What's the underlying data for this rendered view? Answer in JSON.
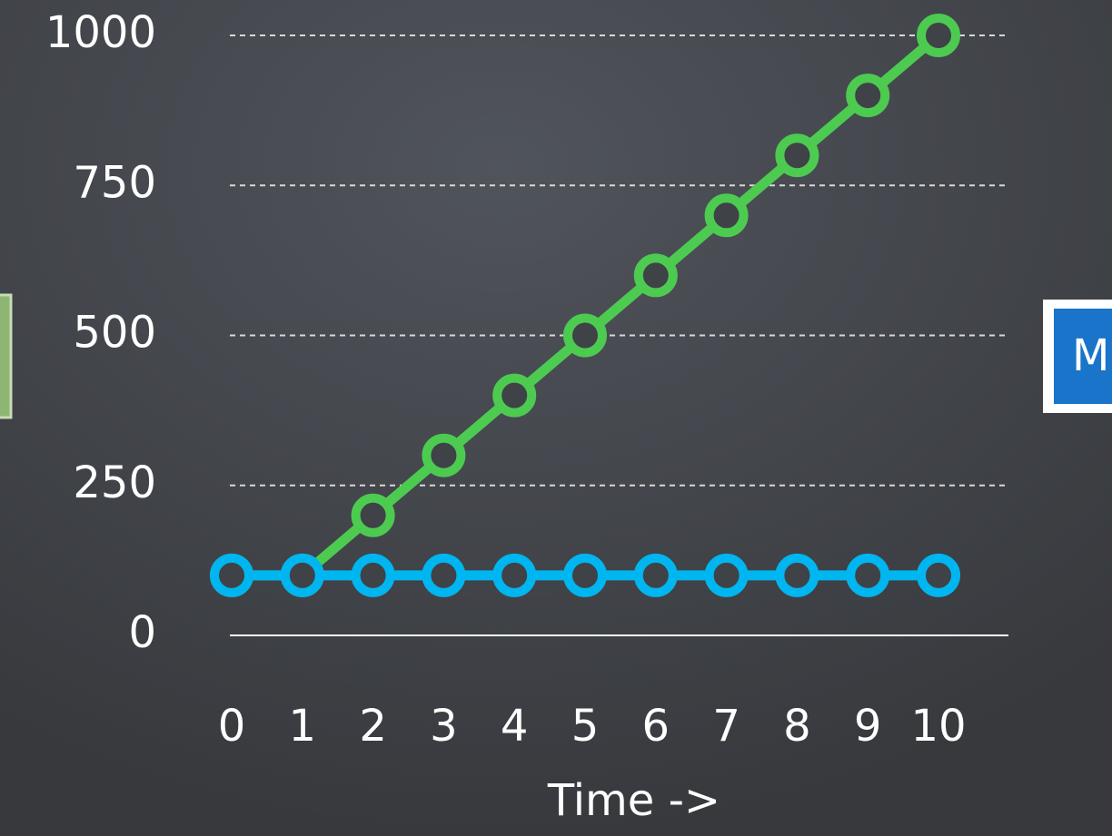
{
  "chart_data": {
    "type": "line",
    "x": [
      0,
      1,
      2,
      3,
      4,
      5,
      6,
      7,
      8,
      9,
      10
    ],
    "xlim": [
      0,
      10
    ],
    "xticks": [
      0,
      1,
      2,
      3,
      4,
      5,
      6,
      7,
      8,
      9,
      10
    ],
    "ylim": [
      0,
      1000
    ],
    "yticks": [
      0,
      250,
      500,
      750,
      1000
    ],
    "xlabel": "Time ->",
    "grid": true,
    "series": [
      {
        "color": "#4ccb50",
        "values": [
          100,
          100,
          200,
          300,
          400,
          500,
          600,
          700,
          800,
          900,
          1000
        ]
      },
      {
        "color": "#00b6f0",
        "values": [
          100,
          100,
          100,
          100,
          100,
          100,
          100,
          100,
          100,
          100,
          100
        ]
      }
    ],
    "annotation": "M"
  }
}
